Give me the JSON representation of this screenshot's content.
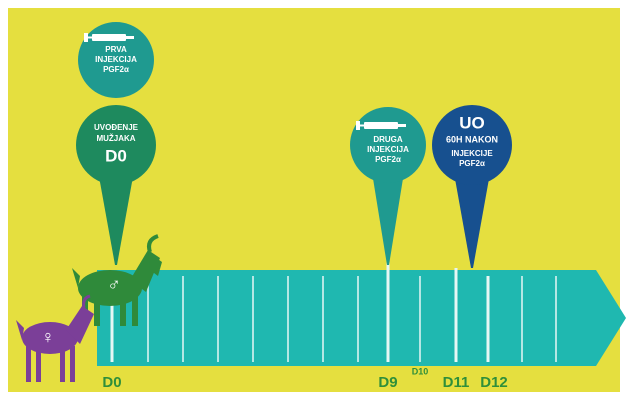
{
  "pins": [
    {
      "text": [
        "PRVA",
        "INJEKCIJA",
        "PGF2α"
      ]
    },
    {
      "text": [
        "UVOĐENJE",
        "MUŽJAKA"
      ],
      "day": "D0"
    },
    {
      "text": [
        "DRUGA",
        "INJEKCIJA",
        "PGF2α"
      ]
    },
    {
      "title": "UO",
      "text": [
        "60H NAKON",
        "INJEKCIJE",
        "PGF2α"
      ]
    }
  ],
  "timeline": {
    "labels": [
      "D0",
      "D9",
      "D10",
      "D11",
      "D12"
    ]
  },
  "symbols": {
    "male": "♂",
    "female": "♀"
  }
}
